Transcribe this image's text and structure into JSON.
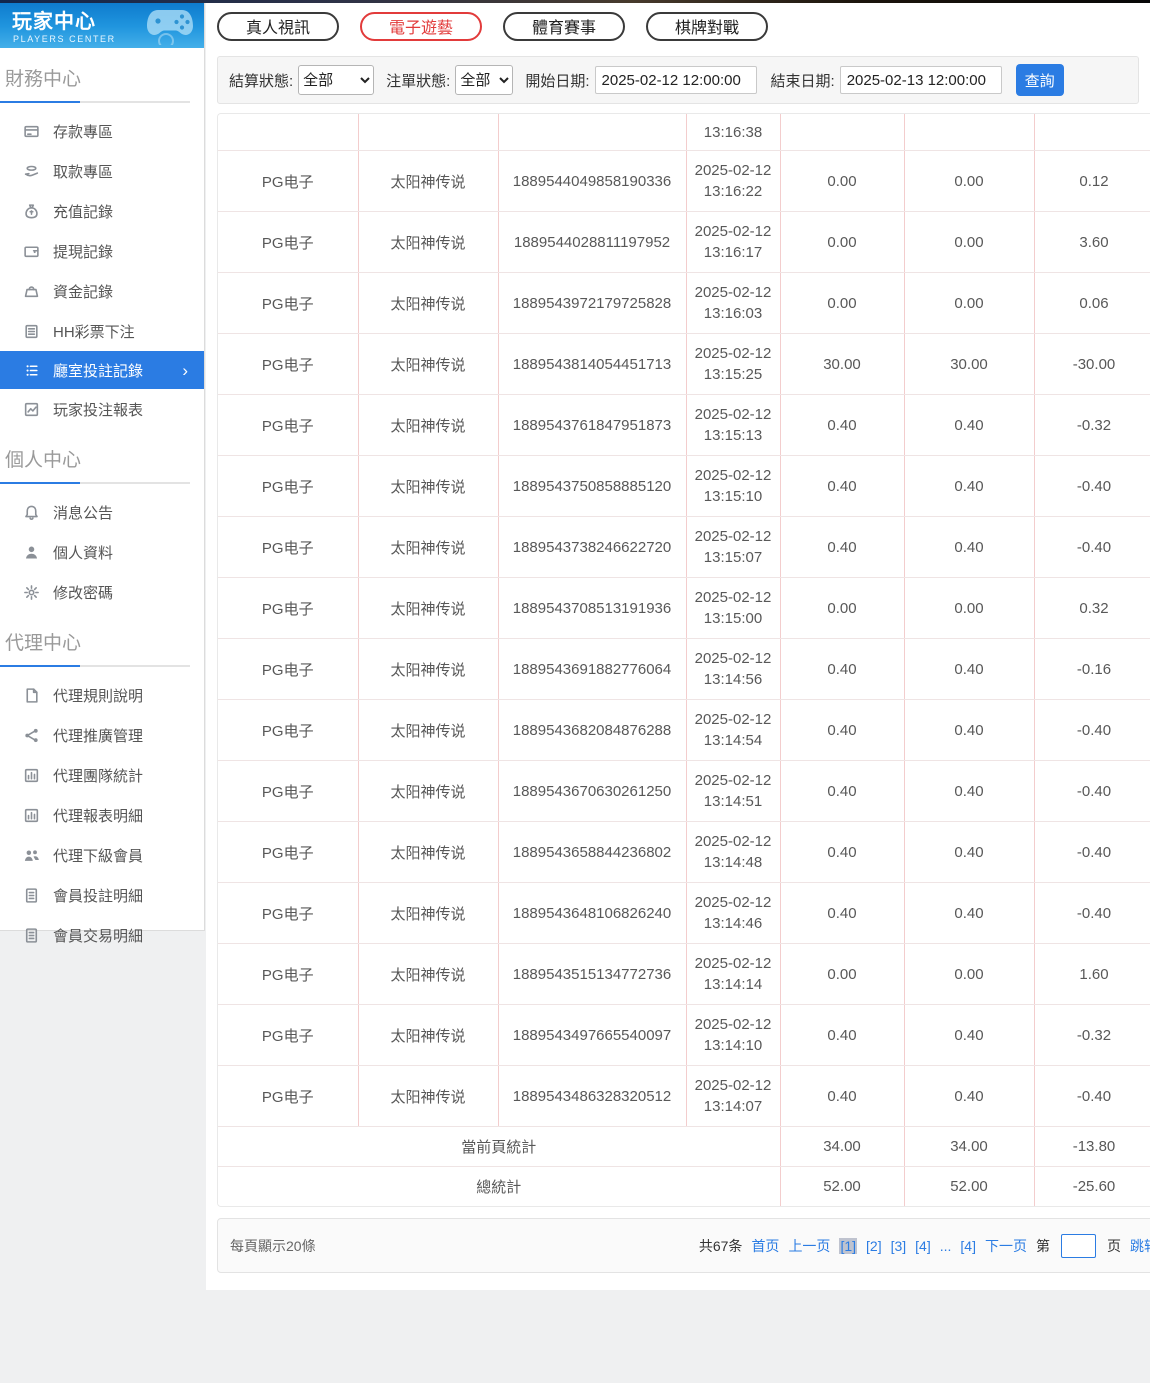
{
  "sidebar": {
    "logo_title": "玩家中心",
    "logo_subtitle": "PLAYERS CENTER",
    "logo_icon": "gamepad-icon",
    "sections": [
      {
        "title": "財務中心",
        "items": [
          {
            "name": "deposit-zone",
            "label": "存款專區",
            "icon": "deposit-card-icon"
          },
          {
            "name": "withdraw-zone",
            "label": "取款專區",
            "icon": "withdraw-hand-icon"
          },
          {
            "name": "recharge-records",
            "label": "充值記錄",
            "icon": "money-bag-icon"
          },
          {
            "name": "withdrawal-records",
            "label": "提現記錄",
            "icon": "wallet-icon"
          },
          {
            "name": "funds-records",
            "label": "資金記錄",
            "icon": "purse-icon"
          },
          {
            "name": "hh-lottery-bets",
            "label": "HH彩票下注",
            "icon": "doc-lines-icon"
          },
          {
            "name": "room-bet-records",
            "label": "廳室投註記錄",
            "icon": "list-icon",
            "active": true,
            "arrow": "›"
          },
          {
            "name": "player-bet-report",
            "label": "玩家投注報表",
            "icon": "report-icon"
          }
        ]
      },
      {
        "title": "個人中心",
        "items": [
          {
            "name": "message-announcements",
            "label": "消息公告",
            "icon": "bell-icon"
          },
          {
            "name": "personal-profile",
            "label": "個人資料",
            "icon": "person-icon"
          },
          {
            "name": "change-password",
            "label": "修改密碼",
            "icon": "gear-icon"
          }
        ]
      },
      {
        "title": "代理中心",
        "items": [
          {
            "name": "agent-rules",
            "label": "代理規則說明",
            "icon": "doc-icon"
          },
          {
            "name": "agent-promotion",
            "label": "代理推廣管理",
            "icon": "share-icon"
          },
          {
            "name": "agent-team-stats",
            "label": "代理團隊統計",
            "icon": "chart-icon"
          },
          {
            "name": "agent-report-details",
            "label": "代理報表明細",
            "icon": "chart-icon"
          },
          {
            "name": "agent-subordinate-members",
            "label": "代理下級會員",
            "icon": "people-icon"
          },
          {
            "name": "member-bet-details",
            "label": "會員投註明細",
            "icon": "clipboard-icon"
          },
          {
            "name": "member-transaction-details",
            "label": "會員交易明細",
            "icon": "clipboard-icon"
          }
        ]
      }
    ]
  },
  "tabs": [
    {
      "name": "tab-live-video",
      "label": "真人視訊",
      "active": false
    },
    {
      "name": "tab-electronic-games",
      "label": "電子遊藝",
      "active": true
    },
    {
      "name": "tab-sports-events",
      "label": "體育賽事",
      "active": false
    },
    {
      "name": "tab-board-card-games",
      "label": "棋牌對戰",
      "active": false
    }
  ],
  "filters": {
    "settle_label": "結算狀態:",
    "settle_value": "全部",
    "order_label": "注單狀態:",
    "order_value": "全部",
    "start_label": "開始日期:",
    "start_value": "2025-02-12 12:00:00",
    "end_label": "結束日期:",
    "end_value": "2025-02-13 12:00:00",
    "search_button": "查詢"
  },
  "table": {
    "partial_first_row_time": "13:16:38",
    "rows": [
      {
        "provider": "PG电子",
        "game": "太阳神传说",
        "order_id": "1889544049858190336",
        "date": "2025-02-12",
        "time": "13:16:22",
        "bet": "0.00",
        "valid": "0.00",
        "winloss": "0.12"
      },
      {
        "provider": "PG电子",
        "game": "太阳神传说",
        "order_id": "1889544028811197952",
        "date": "2025-02-12",
        "time": "13:16:17",
        "bet": "0.00",
        "valid": "0.00",
        "winloss": "3.60"
      },
      {
        "provider": "PG电子",
        "game": "太阳神传说",
        "order_id": "1889543972179725828",
        "date": "2025-02-12",
        "time": "13:16:03",
        "bet": "0.00",
        "valid": "0.00",
        "winloss": "0.06"
      },
      {
        "provider": "PG电子",
        "game": "太阳神传说",
        "order_id": "1889543814054451713",
        "date": "2025-02-12",
        "time": "13:15:25",
        "bet": "30.00",
        "valid": "30.00",
        "winloss": "-30.00"
      },
      {
        "provider": "PG电子",
        "game": "太阳神传说",
        "order_id": "1889543761847951873",
        "date": "2025-02-12",
        "time": "13:15:13",
        "bet": "0.40",
        "valid": "0.40",
        "winloss": "-0.32"
      },
      {
        "provider": "PG电子",
        "game": "太阳神传说",
        "order_id": "1889543750858885120",
        "date": "2025-02-12",
        "time": "13:15:10",
        "bet": "0.40",
        "valid": "0.40",
        "winloss": "-0.40"
      },
      {
        "provider": "PG电子",
        "game": "太阳神传说",
        "order_id": "1889543738246622720",
        "date": "2025-02-12",
        "time": "13:15:07",
        "bet": "0.40",
        "valid": "0.40",
        "winloss": "-0.40"
      },
      {
        "provider": "PG电子",
        "game": "太阳神传说",
        "order_id": "1889543708513191936",
        "date": "2025-02-12",
        "time": "13:15:00",
        "bet": "0.00",
        "valid": "0.00",
        "winloss": "0.32"
      },
      {
        "provider": "PG电子",
        "game": "太阳神传说",
        "order_id": "1889543691882776064",
        "date": "2025-02-12",
        "time": "13:14:56",
        "bet": "0.40",
        "valid": "0.40",
        "winloss": "-0.16"
      },
      {
        "provider": "PG电子",
        "game": "太阳神传说",
        "order_id": "1889543682084876288",
        "date": "2025-02-12",
        "time": "13:14:54",
        "bet": "0.40",
        "valid": "0.40",
        "winloss": "-0.40"
      },
      {
        "provider": "PG电子",
        "game": "太阳神传说",
        "order_id": "1889543670630261250",
        "date": "2025-02-12",
        "time": "13:14:51",
        "bet": "0.40",
        "valid": "0.40",
        "winloss": "-0.40"
      },
      {
        "provider": "PG电子",
        "game": "太阳神传说",
        "order_id": "1889543658844236802",
        "date": "2025-02-12",
        "time": "13:14:48",
        "bet": "0.40",
        "valid": "0.40",
        "winloss": "-0.40"
      },
      {
        "provider": "PG电子",
        "game": "太阳神传说",
        "order_id": "1889543648106826240",
        "date": "2025-02-12",
        "time": "13:14:46",
        "bet": "0.40",
        "valid": "0.40",
        "winloss": "-0.40"
      },
      {
        "provider": "PG电子",
        "game": "太阳神传说",
        "order_id": "1889543515134772736",
        "date": "2025-02-12",
        "time": "13:14:14",
        "bet": "0.00",
        "valid": "0.00",
        "winloss": "1.60"
      },
      {
        "provider": "PG电子",
        "game": "太阳神传说",
        "order_id": "1889543497665540097",
        "date": "2025-02-12",
        "time": "13:14:10",
        "bet": "0.40",
        "valid": "0.40",
        "winloss": "-0.32"
      },
      {
        "provider": "PG电子",
        "game": "太阳神传说",
        "order_id": "1889543486328320512",
        "date": "2025-02-12",
        "time": "13:14:07",
        "bet": "0.40",
        "valid": "0.40",
        "winloss": "-0.40"
      }
    ],
    "summary_rows": [
      {
        "label": "當前頁統計",
        "values": [
          "34.00",
          "34.00",
          "-13.80"
        ]
      },
      {
        "label": "總統計",
        "values": [
          "52.00",
          "52.00",
          "-25.60"
        ]
      }
    ]
  },
  "pagination": {
    "page_size_text": "每頁顯示20條",
    "total_text": "共67条",
    "first": "首页",
    "prev": "上一页",
    "pages": [
      {
        "label": "[1]",
        "active": true
      },
      {
        "label": "[2]",
        "active": false
      },
      {
        "label": "[3]",
        "active": false
      },
      {
        "label": "[4]",
        "active": false
      },
      {
        "label": "...",
        "ellipsis": true
      },
      {
        "label": "[4]",
        "active": false
      }
    ],
    "next": "下一页",
    "jump_prefix": "第",
    "jump_suffix": "页",
    "jump_button": "跳转",
    "jump_value": ""
  }
}
